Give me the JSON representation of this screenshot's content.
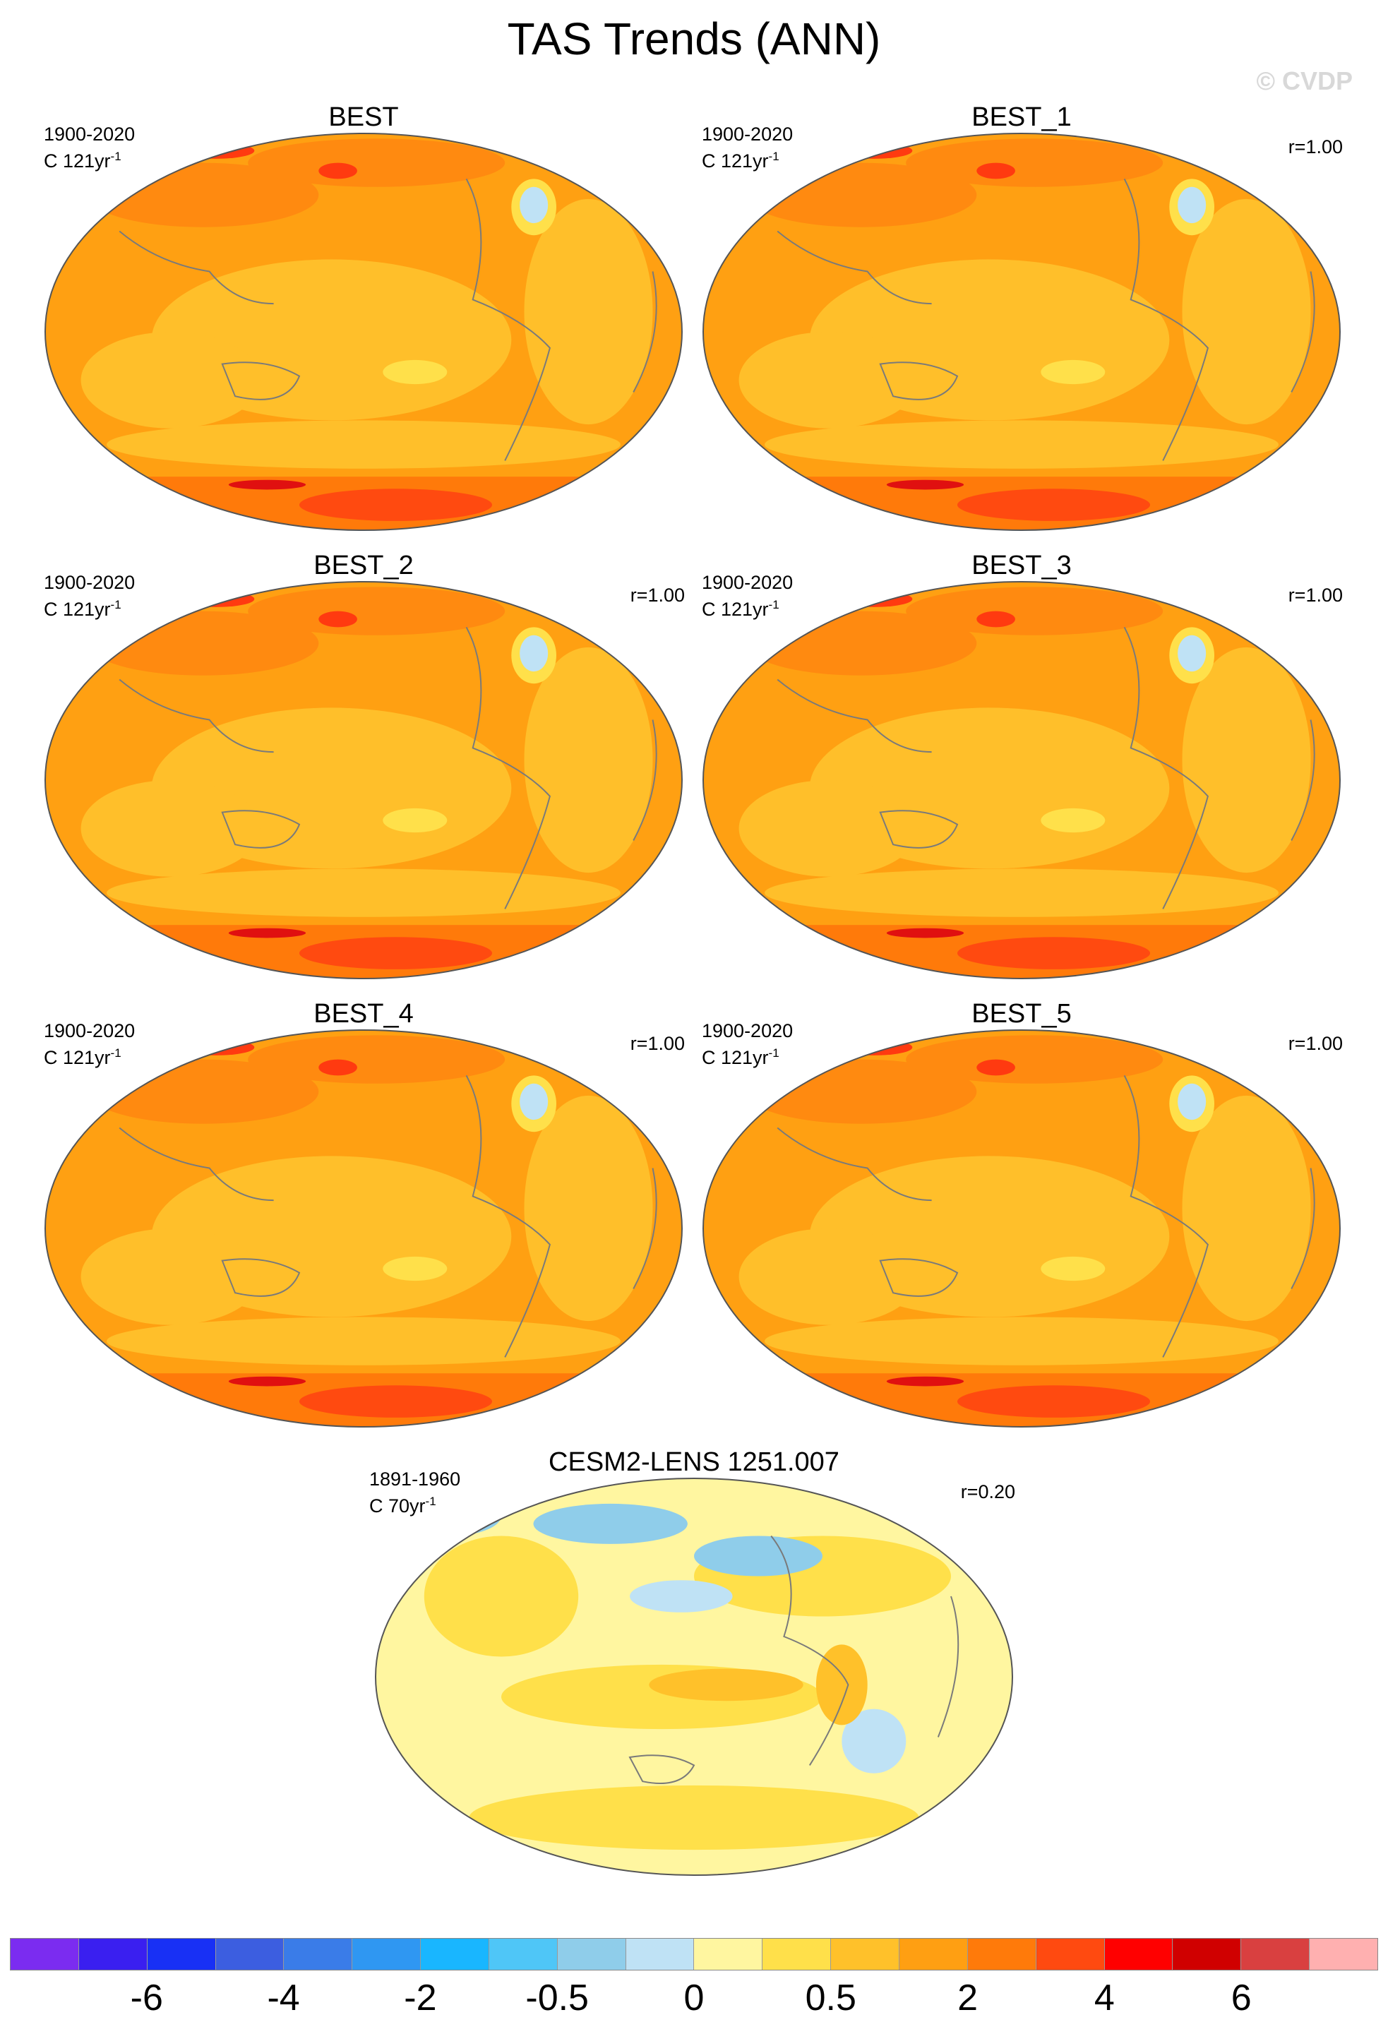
{
  "title": "TAS Trends (ANN)",
  "watermark": "© CVDP",
  "panels": [
    {
      "name": "BEST",
      "period": "1900-2020",
      "units": "C 121yr",
      "sup": "-1",
      "corr": ""
    },
    {
      "name": "BEST_1",
      "period": "1900-2020",
      "units": "C 121yr",
      "sup": "-1",
      "corr": "r=1.00"
    },
    {
      "name": "BEST_2",
      "period": "1900-2020",
      "units": "C 121yr",
      "sup": "-1",
      "corr": "r=1.00"
    },
    {
      "name": "BEST_3",
      "period": "1900-2020",
      "units": "C 121yr",
      "sup": "-1",
      "corr": "r=1.00"
    },
    {
      "name": "BEST_4",
      "period": "1900-2020",
      "units": "C 121yr",
      "sup": "-1",
      "corr": "r=1.00"
    },
    {
      "name": "BEST_5",
      "period": "1900-2020",
      "units": "C 121yr",
      "sup": "-1",
      "corr": "r=1.00"
    },
    {
      "name": "CESM2-LENS 1251.007",
      "period": "1891-1960",
      "units": "C 70yr",
      "sup": "-1",
      "corr": "r=0.20"
    }
  ],
  "colorbar": {
    "colors": [
      "#7b2cf0",
      "#3a1ff0",
      "#1830f5",
      "#3c5ee0",
      "#3a7ce8",
      "#2f97f2",
      "#19b6ff",
      "#4fc6f7",
      "#8fcdea",
      "#bfe2f5",
      "#fff6a0",
      "#ffe04a",
      "#ffc12a",
      "#ff9f12",
      "#ff7a0a",
      "#ff4a10",
      "#ff0000",
      "#d00000",
      "#d94040",
      "#ffb0b0"
    ],
    "labels": [
      "-6",
      "-4",
      "-2",
      "-0.5",
      "0",
      "0.5",
      "2",
      "4",
      "6"
    ]
  },
  "chart_data": {
    "type": "heatmap",
    "title": "TAS Trends (ANN)",
    "colorbar_levels": [
      -6,
      -4,
      -2,
      -0.5,
      0,
      0.5,
      2,
      4,
      6
    ],
    "panels": [
      {
        "name": "BEST",
        "period": "1900-2020",
        "units": "C 121yr-1",
        "pattern_correlation": null,
        "dominant_range": [
          0.5,
          2
        ]
      },
      {
        "name": "BEST_1",
        "period": "1900-2020",
        "units": "C 121yr-1",
        "pattern_correlation": 1.0,
        "dominant_range": [
          0.5,
          2
        ]
      },
      {
        "name": "BEST_2",
        "period": "1900-2020",
        "units": "C 121yr-1",
        "pattern_correlation": 1.0,
        "dominant_range": [
          0.5,
          2
        ]
      },
      {
        "name": "BEST_3",
        "period": "1900-2020",
        "units": "C 121yr-1",
        "pattern_correlation": 1.0,
        "dominant_range": [
          0.5,
          2
        ]
      },
      {
        "name": "BEST_4",
        "period": "1900-2020",
        "units": "C 121yr-1",
        "pattern_correlation": 1.0,
        "dominant_range": [
          0.5,
          2
        ]
      },
      {
        "name": "BEST_5",
        "period": "1900-2020",
        "units": "C 121yr-1",
        "pattern_correlation": 1.0,
        "dominant_range": [
          0.5,
          2
        ]
      },
      {
        "name": "CESM2-LENS 1251.007",
        "period": "1891-1960",
        "units": "C 70yr-1",
        "pattern_correlation": 0.2,
        "dominant_range": [
          -0.5,
          0.5
        ]
      }
    ]
  }
}
